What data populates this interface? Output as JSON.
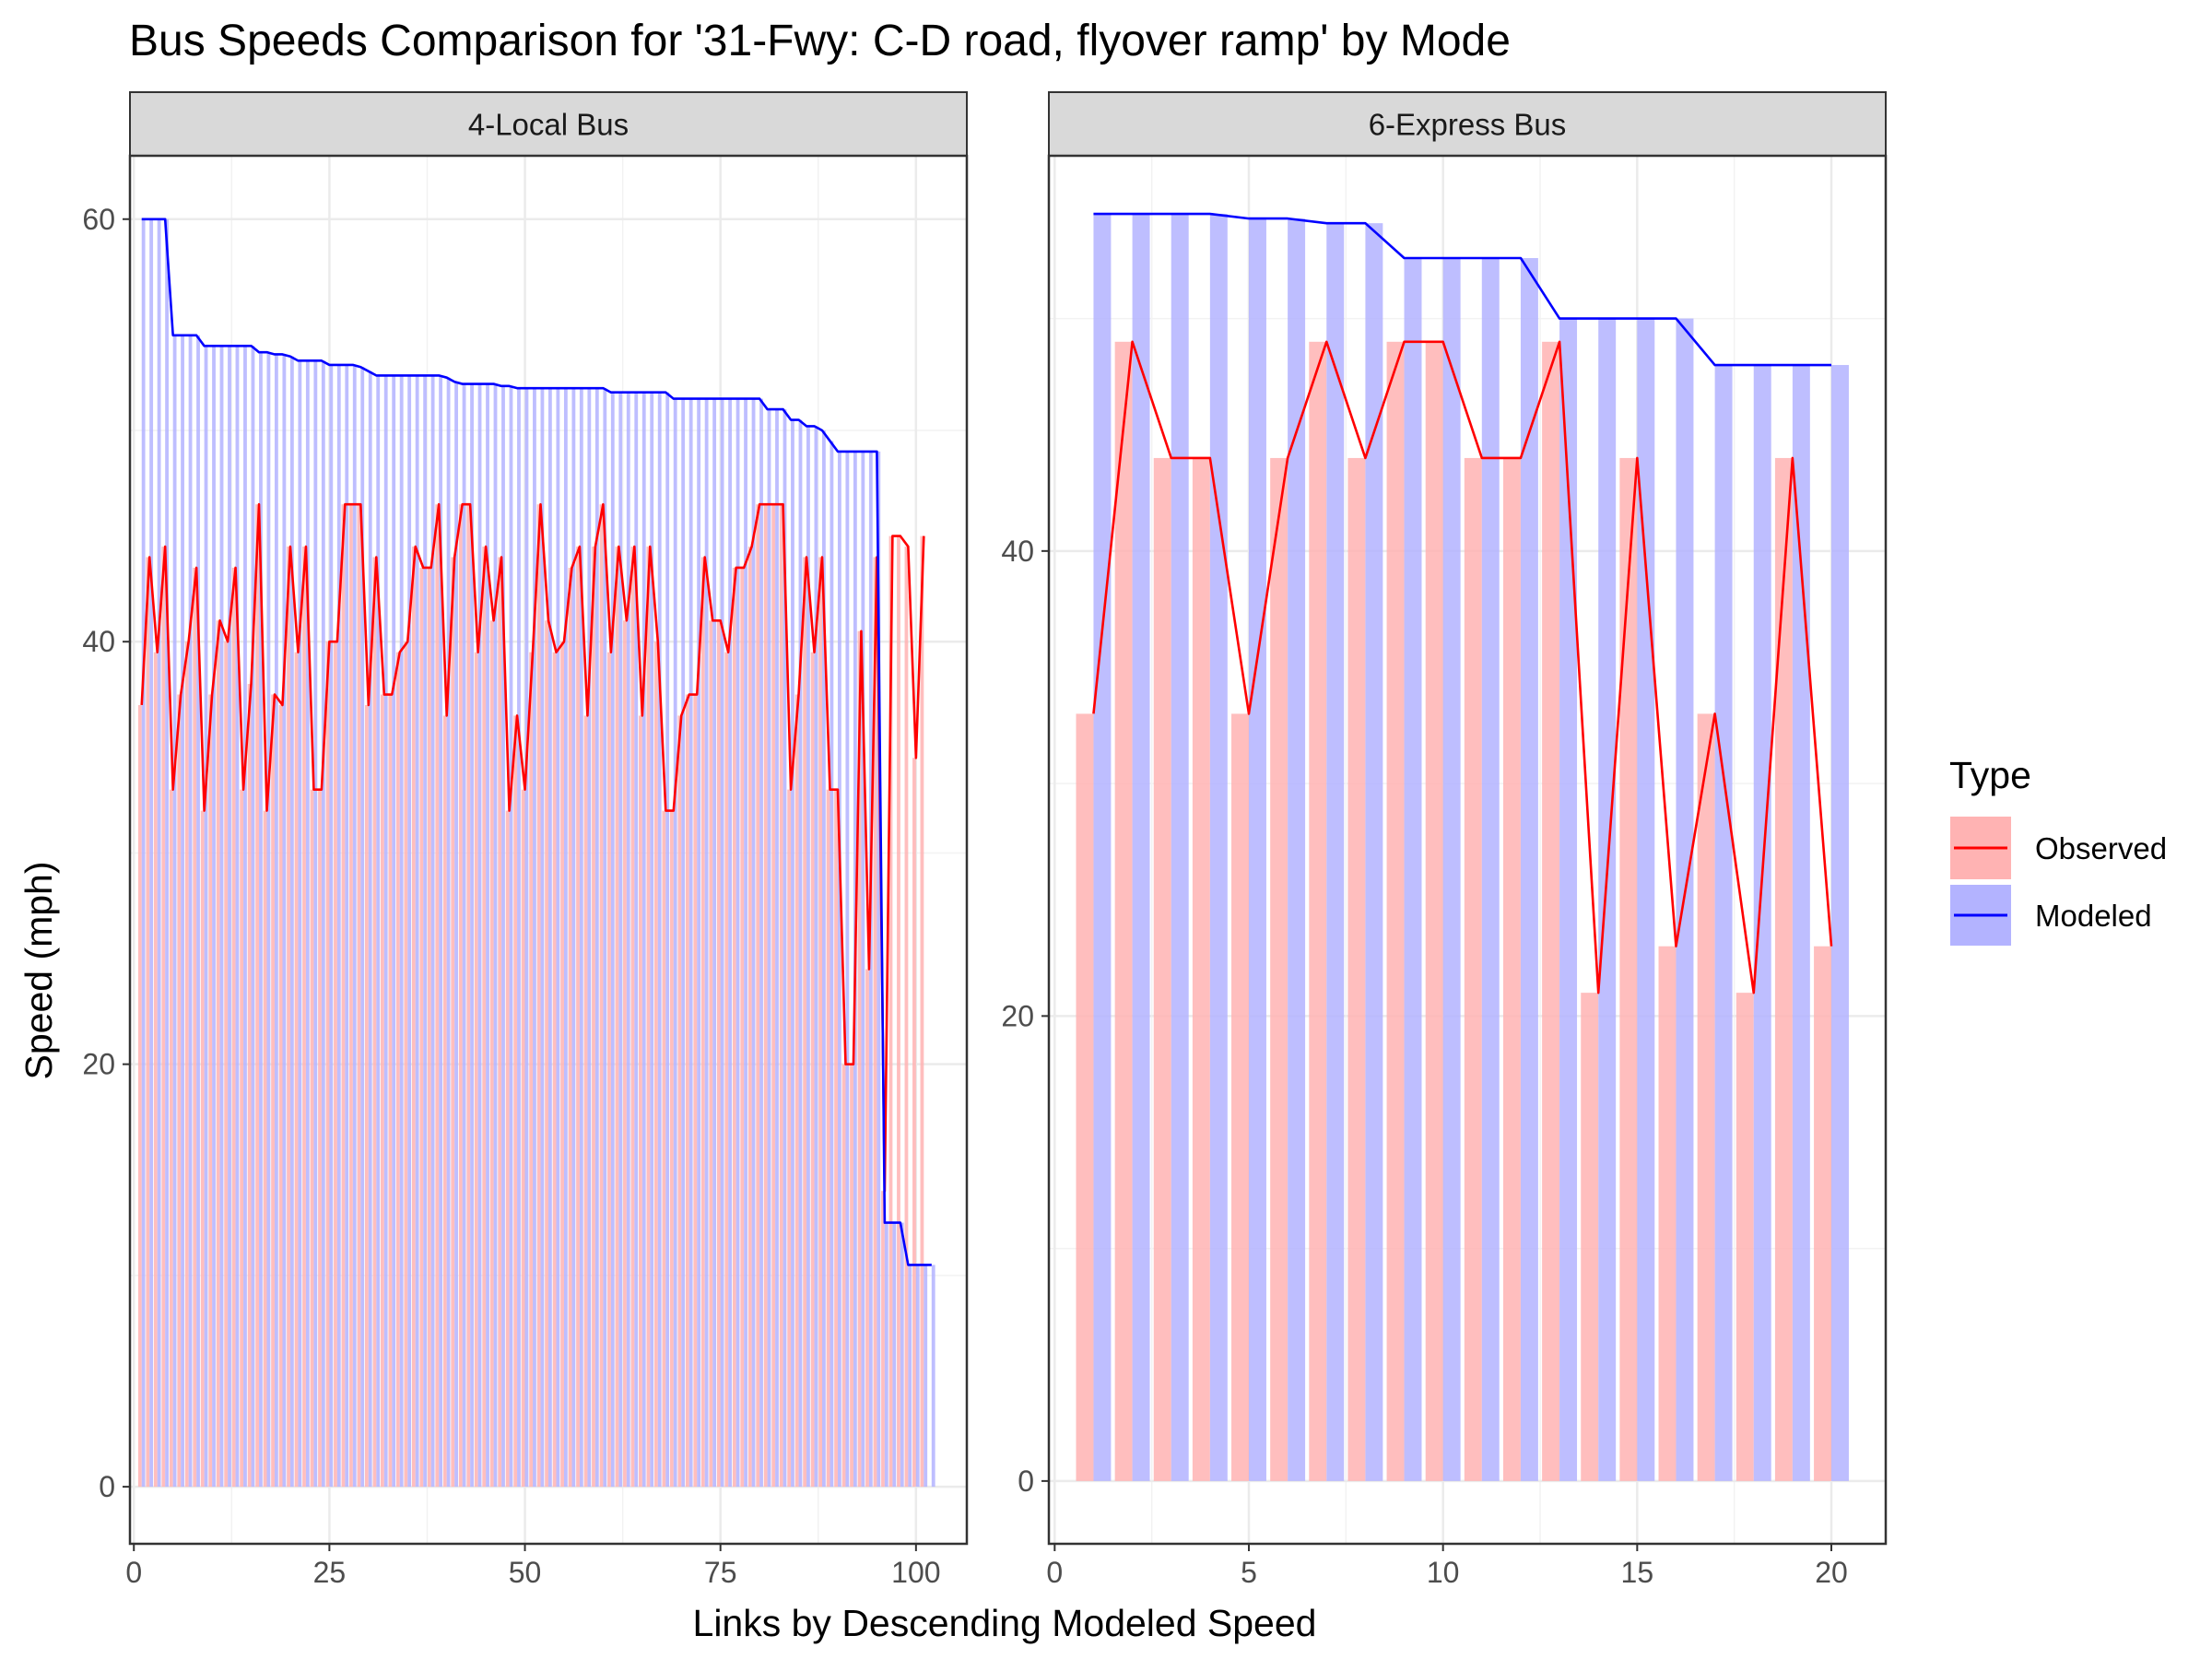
{
  "chart_data": {
    "type": "bar",
    "title": "Bus Speeds Comparison for '31-Fwy: C-D road, flyover ramp' by Mode",
    "xlabel": "Links by Descending Modeled Speed",
    "ylabel": "Speed (mph)",
    "legend": {
      "title": "Type",
      "placement": "right",
      "entries": [
        {
          "name": "Observed",
          "bar_color": "#ffb3b3",
          "line_color": "#ff0000"
        },
        {
          "name": "Modeled",
          "bar_color": "#b3b3ff",
          "line_color": "#0000ff"
        }
      ]
    },
    "grid": true,
    "panels": [
      {
        "strip_label": "4-Local Bus",
        "xlim": [
          -0.5,
          106.5
        ],
        "ylim": [
          -2.7,
          63.0
        ],
        "x_ticks": [
          0,
          25,
          50,
          75,
          100
        ],
        "y_ticks": [
          0,
          20,
          40,
          60
        ],
        "y_minor_ticks": [
          10,
          30,
          50
        ],
        "x_minor_ticks": [
          12.5,
          37.5,
          62.5,
          87.5
        ],
        "modeled": [
          60.0,
          60.0,
          60.0,
          60.0,
          54.5,
          54.5,
          54.5,
          54.5,
          54.0,
          54.0,
          54.0,
          54.0,
          54.0,
          54.0,
          54.0,
          53.7,
          53.7,
          53.6,
          53.6,
          53.5,
          53.3,
          53.3,
          53.3,
          53.3,
          53.1,
          53.1,
          53.1,
          53.1,
          53.0,
          52.8,
          52.6,
          52.6,
          52.6,
          52.6,
          52.6,
          52.6,
          52.6,
          52.6,
          52.6,
          52.5,
          52.3,
          52.2,
          52.2,
          52.2,
          52.2,
          52.2,
          52.1,
          52.1,
          52.0,
          52.0,
          52.0,
          52.0,
          52.0,
          52.0,
          52.0,
          52.0,
          52.0,
          52.0,
          52.0,
          52.0,
          51.8,
          51.8,
          51.8,
          51.8,
          51.8,
          51.8,
          51.8,
          51.8,
          51.5,
          51.5,
          51.5,
          51.5,
          51.5,
          51.5,
          51.5,
          51.5,
          51.5,
          51.5,
          51.5,
          51.5,
          51.0,
          51.0,
          51.0,
          50.5,
          50.5,
          50.2,
          50.2,
          50.0,
          49.5,
          49.0,
          49.0,
          49.0,
          49.0,
          49.0,
          49.0,
          12.5,
          12.5,
          12.5,
          10.5,
          10.5,
          10.5,
          10.5
        ],
        "observed": [
          37,
          44,
          39.5,
          44.5,
          33,
          37.5,
          40,
          43.5,
          32,
          37.5,
          41,
          40,
          43.5,
          33,
          38,
          46.5,
          32,
          37.5,
          37,
          44.5,
          39.5,
          44.5,
          33,
          33,
          40,
          40,
          46.5,
          46.5,
          46.5,
          37,
          44,
          37.5,
          37.5,
          39.5,
          40,
          44.5,
          43.5,
          43.5,
          46.5,
          36.5,
          44,
          46.5,
          46.5,
          39.5,
          44.5,
          41,
          44,
          32,
          36.5,
          33,
          39.5,
          46.5,
          41,
          39.5,
          40,
          43.5,
          44.5,
          36.5,
          44.5,
          46.5,
          39.5,
          44.5,
          41,
          44.5,
          36.5,
          44.5,
          40,
          32,
          32,
          36.5,
          37.5,
          37.5,
          44,
          41,
          41,
          39.5,
          43.5,
          43.5,
          44.5,
          46.5,
          46.5,
          46.5,
          46.5,
          33,
          37.5,
          44,
          39.5,
          44,
          33,
          33,
          20,
          20,
          40.5,
          24.5,
          44,
          14,
          45,
          45,
          44.5,
          34.5,
          45
        ]
      },
      {
        "strip_label": "6-Express Bus",
        "xlim": [
          -0.15,
          21.4
        ],
        "ylim": [
          -2.7,
          57.0
        ],
        "x_ticks": [
          0,
          5,
          10,
          15,
          20
        ],
        "y_ticks": [
          0,
          20,
          40
        ],
        "y_minor_ticks": [
          10,
          30,
          50
        ],
        "x_minor_ticks": [
          2.5,
          7.5,
          12.5,
          17.5
        ],
        "modeled": [
          54.5,
          54.5,
          54.5,
          54.5,
          54.3,
          54.3,
          54.1,
          54.1,
          52.6,
          52.6,
          52.6,
          52.6,
          50.0,
          50.0,
          50.0,
          50.0,
          48.0,
          48.0,
          48.0,
          48.0
        ],
        "observed": [
          33,
          49,
          44,
          44,
          33,
          44,
          49,
          44,
          49,
          49,
          44,
          44,
          49,
          21,
          44,
          23,
          33,
          21,
          44,
          23
        ]
      }
    ]
  }
}
